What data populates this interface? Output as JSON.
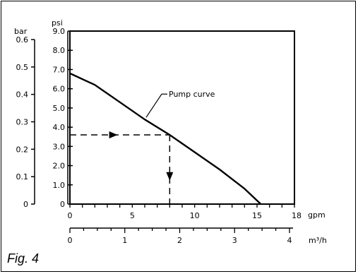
{
  "caption": "Fig. 4",
  "chart_data": {
    "type": "line",
    "title": "",
    "y_primary": {
      "unit": "psi",
      "range": [
        0,
        9
      ],
      "ticks": [
        "0",
        "1.0",
        "2.0",
        "3.0",
        "4.0",
        "5.0",
        "6.0",
        "7.0",
        "8.0",
        "9.0"
      ]
    },
    "y_secondary": {
      "unit": "bar",
      "range": [
        0,
        0.6
      ],
      "ticks": [
        "0",
        "0.1",
        "0.2",
        "0.3",
        "0.4",
        "0.5",
        "0.6"
      ]
    },
    "x_primary": {
      "unit": "gpm",
      "range": [
        0,
        18
      ],
      "ticks": [
        "0",
        "5",
        "10",
        "15",
        "18"
      ]
    },
    "x_secondary": {
      "unit": "m³/h",
      "range": [
        0,
        4
      ],
      "ticks": [
        "0",
        "1",
        "2",
        "3",
        "4"
      ]
    },
    "series": [
      {
        "name": "Pump curve",
        "x": [
          0,
          2,
          4,
          6,
          8,
          10,
          12,
          14,
          15.3
        ],
        "y": [
          6.8,
          6.2,
          5.3,
          4.4,
          3.6,
          2.7,
          1.8,
          0.8,
          0
        ]
      }
    ],
    "annotations": [
      {
        "text": "Pump curve",
        "x": 6,
        "y": 4.4
      }
    ],
    "operating_point": {
      "x": 8,
      "y": 3.6
    },
    "grid": false,
    "legend": "none"
  }
}
